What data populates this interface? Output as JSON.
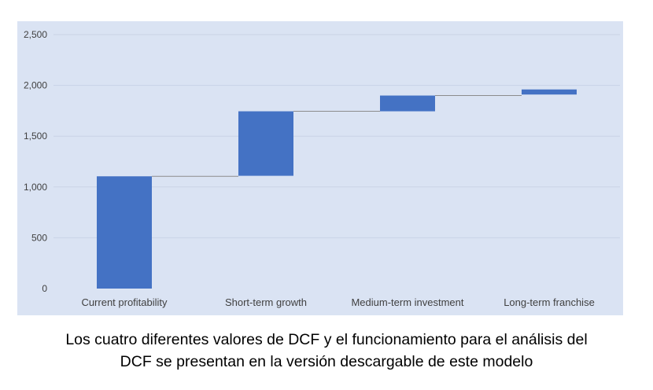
{
  "chart_data": {
    "type": "waterfall",
    "title": "",
    "xlabel": "",
    "ylabel": "",
    "ylim": [
      0,
      2500
    ],
    "yticks": [
      0,
      500,
      1000,
      1500,
      2000,
      2500
    ],
    "ytick_labels": [
      "0",
      "500",
      "1,000",
      "1,500",
      "2,000",
      "2,500"
    ],
    "categories": [
      "Current profitability",
      "Short-term growth",
      "Medium-term investment",
      "Long-term franchise"
    ],
    "base": [
      0,
      1110,
      1745,
      1910
    ],
    "values": [
      1105,
      635,
      155,
      50
    ],
    "grid": true,
    "legend": "none",
    "colors": {
      "bar": "#4472c4",
      "plot_background": "#dae3f3",
      "gridline": "#c9d3e6",
      "connector": "#8c8c8c",
      "tick_text": "#404040"
    }
  },
  "caption": {
    "line1": "Los cuatro diferentes valores de DCF y el funcionamiento para el análisis del",
    "line2": "DCF se presentan en la versión descargable de este modelo"
  }
}
